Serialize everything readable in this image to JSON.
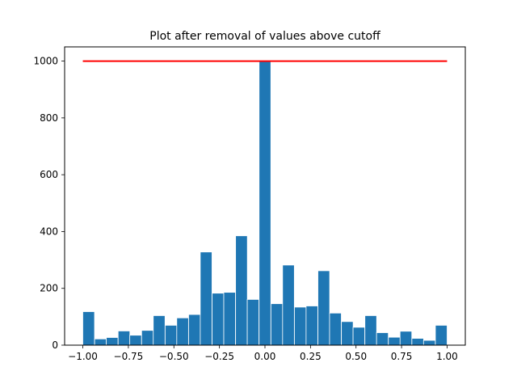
{
  "chart_data": {
    "type": "bar",
    "title": "Plot after removal of values above cutoff",
    "xlabel": "",
    "ylabel": "",
    "xlim": [
      -1.1,
      1.1
    ],
    "ylim": [
      0,
      1050
    ],
    "bin_width": 0.0645,
    "x": [
      -0.968,
      -0.903,
      -0.839,
      -0.774,
      -0.71,
      -0.645,
      -0.581,
      -0.516,
      -0.452,
      -0.387,
      -0.323,
      -0.258,
      -0.194,
      -0.129,
      -0.065,
      0.0,
      0.065,
      0.129,
      0.194,
      0.258,
      0.323,
      0.387,
      0.452,
      0.516,
      0.581,
      0.645,
      0.71,
      0.774,
      0.839,
      0.903,
      0.968
    ],
    "values": [
      118,
      22,
      27,
      50,
      35,
      52,
      104,
      70,
      96,
      108,
      328,
      183,
      186,
      385,
      161,
      1000,
      146,
      282,
      134,
      138,
      262,
      113,
      83,
      63,
      104,
      44,
      28,
      49,
      24,
      17,
      70
    ],
    "cutoff_line": {
      "y": 1000,
      "x_start": -1.0,
      "x_end": 1.0,
      "color": "#ff0000"
    },
    "bar_color": "#1f77b4",
    "x_ticks": [
      -1.0,
      -0.75,
      -0.5,
      -0.25,
      0.0,
      0.25,
      0.5,
      0.75,
      1.0
    ],
    "x_tick_labels": [
      "−1.00",
      "−0.75",
      "−0.50",
      "−0.25",
      "0.00",
      "0.25",
      "0.50",
      "0.75",
      "1.00"
    ],
    "y_ticks": [
      0,
      200,
      400,
      600,
      800,
      1000
    ],
    "y_tick_labels": [
      "0",
      "200",
      "400",
      "600",
      "800",
      "1000"
    ],
    "grid": false,
    "legend": "none"
  }
}
